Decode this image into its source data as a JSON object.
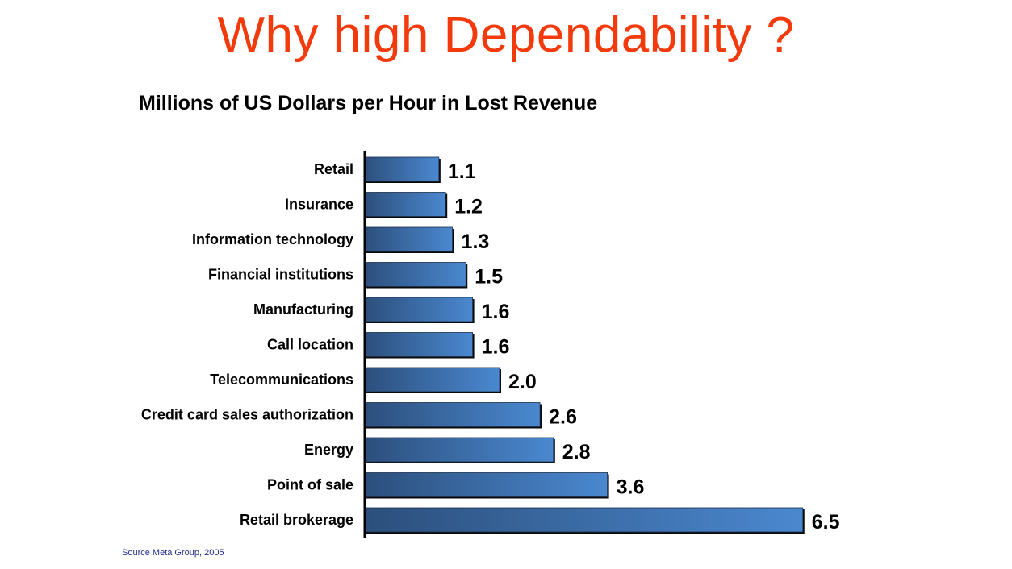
{
  "header": {
    "title": "Why high Dependability ?"
  },
  "footer": {
    "source": "Source Meta Group, 2005"
  },
  "colors": {
    "title": "#f23a0c",
    "bar_dark": "#2c4f7c",
    "bar_light": "#4a88cf",
    "bar_shadow": "#0a0a0a"
  },
  "chart_data": {
    "type": "bar",
    "orientation": "horizontal",
    "title": "Millions of US Dollars per Hour in Lost Revenue",
    "xlabel": "",
    "ylabel": "",
    "categories": [
      "Retail",
      "Insurance",
      "Information technology",
      "Financial institutions",
      "Manufacturing",
      "Call location",
      "Telecommunications",
      "Credit card sales authorization",
      "Energy",
      "Point of sale",
      "Retail brokerage"
    ],
    "values": [
      1.1,
      1.2,
      1.3,
      1.5,
      1.6,
      1.6,
      2.0,
      2.6,
      2.8,
      3.6,
      6.5
    ],
    "value_labels": [
      "1.1",
      "1.2",
      "1.3",
      "1.5",
      "1.6",
      "1.6",
      "2.0",
      "2.6",
      "2.8",
      "3.6",
      "6.5"
    ],
    "xlim": [
      0,
      6.5
    ],
    "grid": false,
    "legend": "none"
  }
}
